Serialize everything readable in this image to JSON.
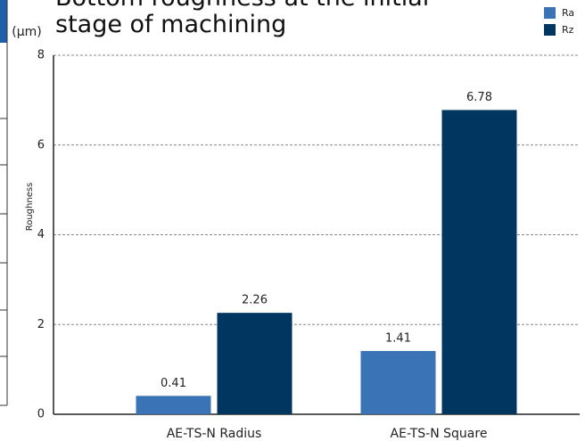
{
  "chart_data": {
    "type": "bar",
    "title": "Bottom roughness at the initial stage of machining",
    "unit": "(μm)",
    "y_label": "Roughness",
    "categories": [
      "AE-TS-N Radius",
      "AE-TS-N Square"
    ],
    "series": [
      {
        "name": "Ra",
        "color": "#3b74b6",
        "values": [
          0.41,
          1.41
        ]
      },
      {
        "name": "Rz",
        "color": "#003660",
        "values": [
          2.26,
          6.78
        ]
      }
    ],
    "ylim": [
      0,
      8
    ],
    "yticks": [
      0,
      2,
      4,
      6,
      8
    ],
    "grid": true,
    "legend": "top-right"
  }
}
